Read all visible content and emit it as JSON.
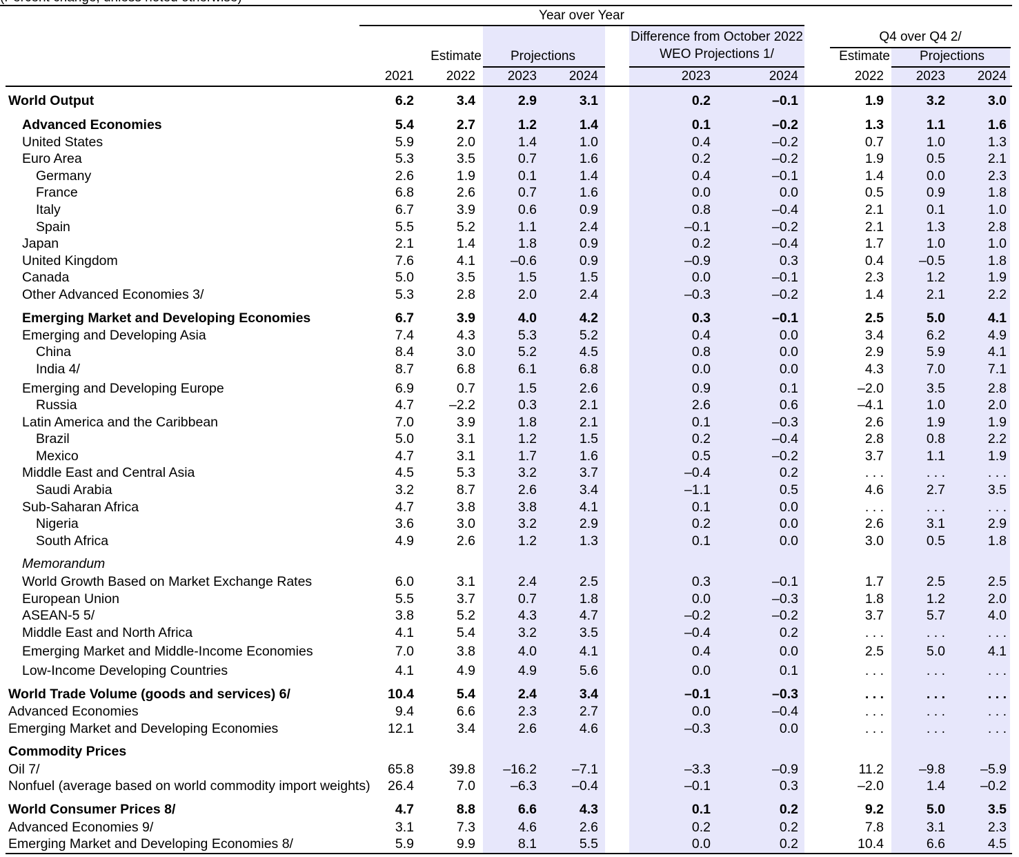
{
  "header": {
    "cut_note": "(Percent change, unless noted otherwise)",
    "year_over_year": "Year over Year",
    "difference_line1": "Difference from October 2022",
    "difference_line2": "WEO Projections 1/",
    "q4_over_q4": "Q4 over Q4 2/",
    "estimate": "Estimate",
    "projections": "Projections",
    "years": [
      "2021",
      "2022",
      "2023",
      "2024",
      "2023",
      "2024",
      "2022",
      "2023",
      "2024"
    ]
  },
  "rows": [
    {
      "label": "World Output",
      "style": "bold",
      "indent": 0,
      "values": [
        "6.2",
        "3.4",
        "2.9",
        "3.1",
        "0.2",
        "–0.1",
        "1.9",
        "3.2",
        "3.0"
      ]
    },
    {
      "label": "Advanced Economies",
      "style": "bold",
      "indent": 1,
      "values": [
        "5.4",
        "2.7",
        "1.2",
        "1.4",
        "0.1",
        "–0.2",
        "1.3",
        "1.1",
        "1.6"
      ]
    },
    {
      "label": "United States",
      "indent": 1,
      "values": [
        "5.9",
        "2.0",
        "1.4",
        "1.0",
        "0.4",
        "–0.2",
        "0.7",
        "1.0",
        "1.3"
      ]
    },
    {
      "label": "Euro Area",
      "indent": 1,
      "values": [
        "5.3",
        "3.5",
        "0.7",
        "1.6",
        "0.2",
        "–0.2",
        "1.9",
        "0.5",
        "2.1"
      ]
    },
    {
      "label": "Germany",
      "indent": 2,
      "values": [
        "2.6",
        "1.9",
        "0.1",
        "1.4",
        "0.4",
        "–0.1",
        "1.4",
        "0.0",
        "2.3"
      ]
    },
    {
      "label": "France",
      "indent": 2,
      "values": [
        "6.8",
        "2.6",
        "0.7",
        "1.6",
        "0.0",
        "0.0",
        "0.5",
        "0.9",
        "1.8"
      ]
    },
    {
      "label": "Italy",
      "indent": 2,
      "values": [
        "6.7",
        "3.9",
        "0.6",
        "0.9",
        "0.8",
        "–0.4",
        "2.1",
        "0.1",
        "1.0"
      ]
    },
    {
      "label": "Spain",
      "indent": 2,
      "values": [
        "5.5",
        "5.2",
        "1.1",
        "2.4",
        "–0.1",
        "–0.2",
        "2.1",
        "1.3",
        "2.8"
      ]
    },
    {
      "label": "Japan",
      "indent": 1,
      "values": [
        "2.1",
        "1.4",
        "1.8",
        "0.9",
        "0.2",
        "–0.4",
        "1.7",
        "1.0",
        "1.0"
      ]
    },
    {
      "label": "United Kingdom",
      "indent": 1,
      "values": [
        "7.6",
        "4.1",
        "–0.6",
        "0.9",
        "–0.9",
        "0.3",
        "0.4",
        "–0.5",
        "1.8"
      ]
    },
    {
      "label": "Canada",
      "indent": 1,
      "values": [
        "5.0",
        "3.5",
        "1.5",
        "1.5",
        "0.0",
        "–0.1",
        "2.3",
        "1.2",
        "1.9"
      ]
    },
    {
      "label": "Other Advanced Economies 3/",
      "indent": 1,
      "values": [
        "5.3",
        "2.8",
        "2.0",
        "2.4",
        "–0.3",
        "–0.2",
        "1.4",
        "2.1",
        "2.2"
      ]
    },
    {
      "label": "Emerging Market and Developing Economies",
      "style": "bold",
      "indent": 1,
      "values": [
        "6.7",
        "3.9",
        "4.0",
        "4.2",
        "0.3",
        "–0.1",
        "2.5",
        "5.0",
        "4.1"
      ]
    },
    {
      "label": "Emerging and Developing Asia",
      "indent": 1,
      "values": [
        "7.4",
        "4.3",
        "5.3",
        "5.2",
        "0.4",
        "0.0",
        "3.4",
        "6.2",
        "4.9"
      ]
    },
    {
      "label": "China",
      "indent": 2,
      "values": [
        "8.4",
        "3.0",
        "5.2",
        "4.5",
        "0.8",
        "0.0",
        "2.9",
        "5.9",
        "4.1"
      ]
    },
    {
      "label": "India 4/",
      "indent": 2,
      "values": [
        "8.7",
        "6.8",
        "6.1",
        "6.8",
        "0.0",
        "0.0",
        "4.3",
        "7.0",
        "7.1"
      ]
    },
    {
      "label": "Emerging and Developing Europe",
      "indent": 1,
      "values": [
        "6.9",
        "0.7",
        "1.5",
        "2.6",
        "0.9",
        "0.1",
        "–2.0",
        "3.5",
        "2.8"
      ]
    },
    {
      "label": "Russia",
      "indent": 2,
      "values": [
        "4.7",
        "–2.2",
        "0.3",
        "2.1",
        "2.6",
        "0.6",
        "–4.1",
        "1.0",
        "2.0"
      ]
    },
    {
      "label": "Latin America and the Caribbean",
      "indent": 1,
      "values": [
        "7.0",
        "3.9",
        "1.8",
        "2.1",
        "0.1",
        "–0.3",
        "2.6",
        "1.9",
        "1.9"
      ]
    },
    {
      "label": "Brazil",
      "indent": 2,
      "values": [
        "5.0",
        "3.1",
        "1.2",
        "1.5",
        "0.2",
        "–0.4",
        "2.8",
        "0.8",
        "2.2"
      ]
    },
    {
      "label": "Mexico",
      "indent": 2,
      "values": [
        "4.7",
        "3.1",
        "1.7",
        "1.6",
        "0.5",
        "–0.2",
        "3.7",
        "1.1",
        "1.9"
      ]
    },
    {
      "label": "Middle East and Central Asia",
      "indent": 1,
      "values": [
        "4.5",
        "5.3",
        "3.2",
        "3.7",
        "–0.4",
        "0.2",
        ". . .",
        ". . .",
        ". . ."
      ]
    },
    {
      "label": "Saudi Arabia",
      "indent": 2,
      "values": [
        "3.2",
        "8.7",
        "2.6",
        "3.4",
        "–1.1",
        "0.5",
        "4.6",
        "2.7",
        "3.5"
      ]
    },
    {
      "label": "Sub-Saharan Africa",
      "indent": 1,
      "values": [
        "4.7",
        "3.8",
        "3.8",
        "4.1",
        "0.1",
        "0.0",
        ". . .",
        ". . .",
        ". . ."
      ]
    },
    {
      "label": "Nigeria",
      "indent": 2,
      "values": [
        "3.6",
        "3.0",
        "3.2",
        "2.9",
        "0.2",
        "0.0",
        "2.6",
        "3.1",
        "2.9"
      ]
    },
    {
      "label": "South Africa",
      "indent": 2,
      "values": [
        "4.9",
        "2.6",
        "1.2",
        "1.3",
        "0.1",
        "0.0",
        "3.0",
        "0.5",
        "1.8"
      ]
    },
    {
      "label": "Memorandum",
      "style": "italic",
      "indent": 1,
      "values": [
        "",
        "",
        "",
        "",
        "",
        "",
        "",
        "",
        ""
      ]
    },
    {
      "label": "World Growth Based on Market Exchange Rates",
      "indent": 1,
      "values": [
        "6.0",
        "3.1",
        "2.4",
        "2.5",
        "0.3",
        "–0.1",
        "1.7",
        "2.5",
        "2.5"
      ]
    },
    {
      "label": "European Union",
      "indent": 1,
      "values": [
        "5.5",
        "3.7",
        "0.7",
        "1.8",
        "0.0",
        "–0.3",
        "1.8",
        "1.2",
        "2.0"
      ]
    },
    {
      "label": "ASEAN-5 5/",
      "indent": 1,
      "values": [
        "3.8",
        "5.2",
        "4.3",
        "4.7",
        "–0.2",
        "–0.2",
        "3.7",
        "5.7",
        "4.0"
      ]
    },
    {
      "label": "Middle East and North Africa",
      "indent": 1,
      "values": [
        "4.1",
        "5.4",
        "3.2",
        "3.5",
        "–0.4",
        "0.2",
        ". . .",
        ". . .",
        ". . ."
      ]
    },
    {
      "label": "Emerging Market and Middle-Income Economies",
      "indent": 1,
      "values": [
        "7.0",
        "3.8",
        "4.0",
        "4.1",
        "0.4",
        "0.0",
        "2.5",
        "5.0",
        "4.1"
      ]
    },
    {
      "label": "Low-Income Developing Countries",
      "indent": 1,
      "values": [
        "4.1",
        "4.9",
        "4.9",
        "5.6",
        "0.0",
        "0.1",
        ". . .",
        ". . .",
        ". . ."
      ]
    },
    {
      "label": "World Trade Volume (goods and services) 6/",
      "style": "bold",
      "indent": 0,
      "values": [
        "10.4",
        "5.4",
        "2.4",
        "3.4",
        "–0.1",
        "–0.3",
        ". . .",
        ". . .",
        ". . ."
      ]
    },
    {
      "label": "Advanced Economies",
      "indent": 0,
      "values": [
        "9.4",
        "6.6",
        "2.3",
        "2.7",
        "0.0",
        "–0.4",
        ". . .",
        ". . .",
        ". . ."
      ]
    },
    {
      "label": "Emerging Market and Developing Economies",
      "indent": 0,
      "values": [
        "12.1",
        "3.4",
        "2.6",
        "4.6",
        "–0.3",
        "0.0",
        ". . .",
        ". . .",
        ". . ."
      ]
    },
    {
      "label": "Commodity Prices",
      "style": "bold",
      "indent": 0,
      "values": [
        "",
        "",
        "",
        "",
        "",
        "",
        "",
        "",
        ""
      ]
    },
    {
      "label": "Oil 7/",
      "indent": 0,
      "values": [
        "65.8",
        "39.8",
        "–16.2",
        "–7.1",
        "–3.3",
        "–0.9",
        "11.2",
        "–9.8",
        "–5.9"
      ]
    },
    {
      "label": "Nonfuel (average based on world commodity import weights)",
      "indent": 0,
      "values": [
        "26.4",
        "7.0",
        "–6.3",
        "–0.4",
        "–0.1",
        "0.3",
        "–2.0",
        "1.4",
        "–0.2"
      ]
    },
    {
      "label": "World Consumer Prices 8/",
      "style": "bold",
      "indent": 0,
      "values": [
        "4.7",
        "8.8",
        "6.6",
        "4.3",
        "0.1",
        "0.2",
        "9.2",
        "5.0",
        "3.5"
      ]
    },
    {
      "label": "Advanced Economies 9/",
      "indent": 0,
      "values": [
        "3.1",
        "7.3",
        "4.6",
        "2.6",
        "0.2",
        "0.2",
        "7.8",
        "3.1",
        "2.3"
      ]
    },
    {
      "label": "Emerging Market and Developing Economies 8/",
      "indent": 0,
      "values": [
        "5.9",
        "9.9",
        "8.1",
        "5.5",
        "0.0",
        "0.2",
        "10.4",
        "6.6",
        "4.5"
      ]
    }
  ]
}
